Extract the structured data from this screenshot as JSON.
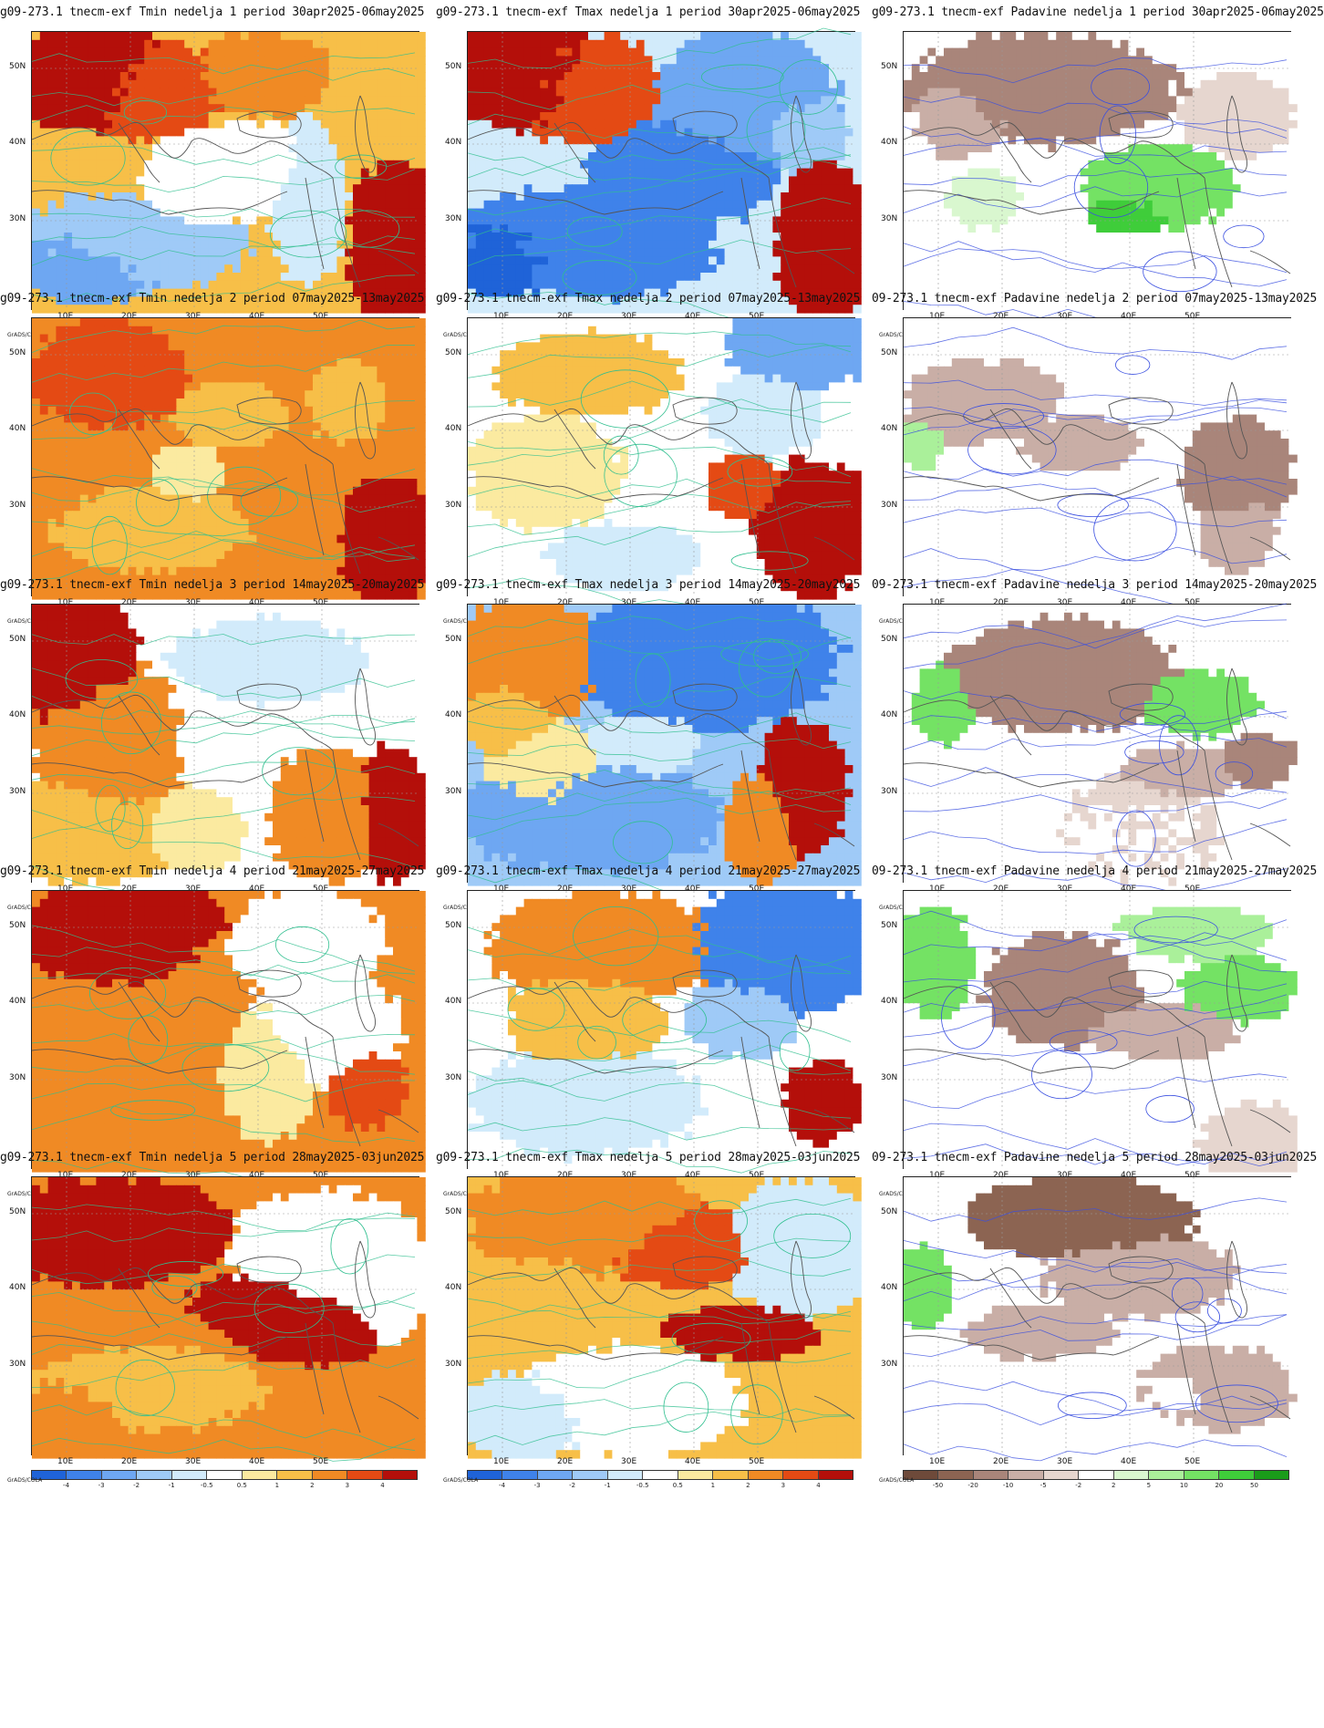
{
  "credit": "GrADS/COLA",
  "lat_labels": [
    "50N",
    "40N",
    "30N"
  ],
  "lon_labels": [
    "10E",
    "20E",
    "30E",
    "40E",
    "50E"
  ],
  "scales": {
    "temp": {
      "labels": [
        "-4",
        "-3",
        "-2",
        "-1",
        "-0.5",
        "0.5",
        "1",
        "2",
        "3",
        "4"
      ],
      "colors": [
        "#1f63d8",
        "#3f82ea",
        "#6ea7f2",
        "#9fcaf7",
        "#d2ebfb",
        "#ffffff",
        "#fbeaa0",
        "#f7bf48",
        "#f08a24",
        "#e44a14",
        "#b40f0a"
      ]
    },
    "precip": {
      "labels": [
        "-50",
        "-20",
        "-10",
        "-5",
        "-2",
        "2",
        "5",
        "10",
        "20",
        "50"
      ],
      "colors": [
        "#6e4a3a",
        "#8c6452",
        "#a9857a",
        "#c9aea6",
        "#e6d6cf",
        "#ffffff",
        "#d9f7cf",
        "#aaf09a",
        "#74e264",
        "#3fcd3a",
        "#1a9c1a"
      ]
    }
  },
  "rows": [
    {
      "week": "1",
      "titles": [
        "g09-273.1 tnecm-exf Tmin nedelja 1 period 30apr2025-06may2025",
        "g09-273.1 tnecm-exf Tmax nedelja 1 period 30apr2025-06may2025",
        "g09-273.1 tnecm-exf Padavine nedelja 1 period 30apr2025-06may2025"
      ]
    },
    {
      "week": "2",
      "titles": [
        "g09-273.1 tnecm-exf Tmin nedelja 2 period 07may2025-13may2025",
        "g09-273.1 tnecm-exf Tmax nedelja 2 period 07may2025-13may2025",
        "09-273.1 tnecm-exf Padavine nedelja 2 period 07may2025-13may2025"
      ]
    },
    {
      "week": "3",
      "titles": [
        "g09-273.1 tnecm-exf Tmin nedelja 3 period 14may2025-20may2025",
        "g09-273.1 tnecm-exf Tmax nedelja 3 period 14may2025-20may2025",
        "09-273.1 tnecm-exf Padavine nedelja 3 period 14may2025-20may2025"
      ]
    },
    {
      "week": "4",
      "titles": [
        "g09-273.1 tnecm-exf Tmin nedelja 4 period 21may2025-27may2025",
        "g09-273.1 tnecm-exf Tmax nedelja 4 period 21may2025-27may2025",
        "09-273.1 tnecm-exf Padavine nedelja 4 period 21may2025-27may2025"
      ]
    },
    {
      "week": "5",
      "titles": [
        "g09-273.1 tnecm-exf Tmin nedelja 5 period 28may2025-03jun2025",
        "g09-273.1 tnecm-exf Tmax nedelja 5 period 28may2025-03jun2025",
        "09-273.1 tnecm-exf Padavine nedelja 5 period 28may2025-03jun2025"
      ]
    }
  ]
}
